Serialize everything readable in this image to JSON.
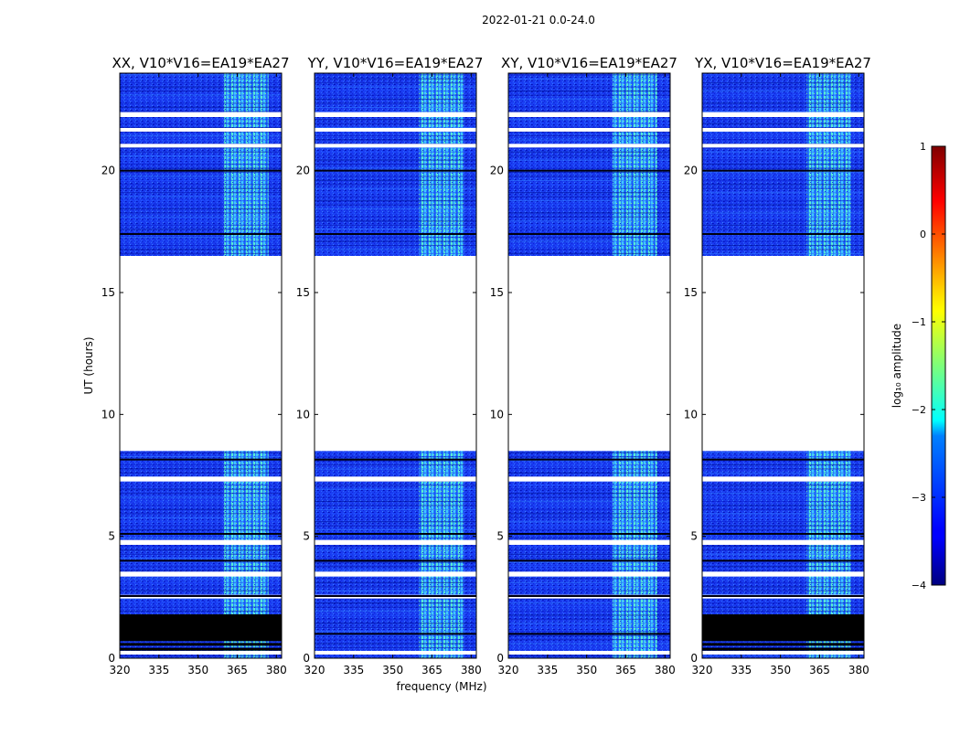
{
  "suptitle": "2022-01-21 0.0-24.0",
  "chart_data": {
    "type": "heatmap",
    "title": "2022-01-21 0.0-24.0",
    "xlabel": "frequency (MHz)",
    "ylabel": "UT (hours)",
    "xlim": [
      320,
      382
    ],
    "ylim": [
      0,
      24
    ],
    "xticks": [
      320,
      335,
      350,
      365,
      380
    ],
    "yticks": [
      0,
      5,
      10,
      15,
      20
    ],
    "panels": [
      {
        "title": "XX, V10*V16=EA19*EA27",
        "low_block": [
          0.7,
          1.8
        ]
      },
      {
        "title": "YY, V10*V16=EA19*EA27",
        "low_block": null
      },
      {
        "title": "XY, V10*V16=EA19*EA27",
        "low_block": null
      },
      {
        "title": "YX, V10*V16=EA19*EA27",
        "low_block": [
          0.7,
          1.8
        ]
      }
    ],
    "data_ranges_ut": [
      [
        0.0,
        8.5
      ],
      [
        16.5,
        24.0
      ]
    ],
    "rfi_band_mhz": [
      360,
      377
    ],
    "flagged_bands_ut": [
      [
        22.2,
        22.4
      ],
      [
        21.6,
        21.75
      ],
      [
        20.95,
        21.1
      ],
      [
        7.25,
        7.45
      ],
      [
        4.65,
        4.85
      ],
      [
        3.35,
        3.55
      ],
      [
        2.45,
        2.6
      ],
      [
        0.15,
        0.3
      ]
    ],
    "colorbar": {
      "label": "log₁₀ amplitude",
      "range": [
        -4,
        1
      ],
      "ticks": [
        1,
        0,
        -1,
        -2,
        -3,
        -4
      ],
      "tick_labels": [
        "1",
        "0",
        "−1",
        "−2",
        "−3",
        "−4"
      ],
      "colormap": "jet"
    }
  }
}
